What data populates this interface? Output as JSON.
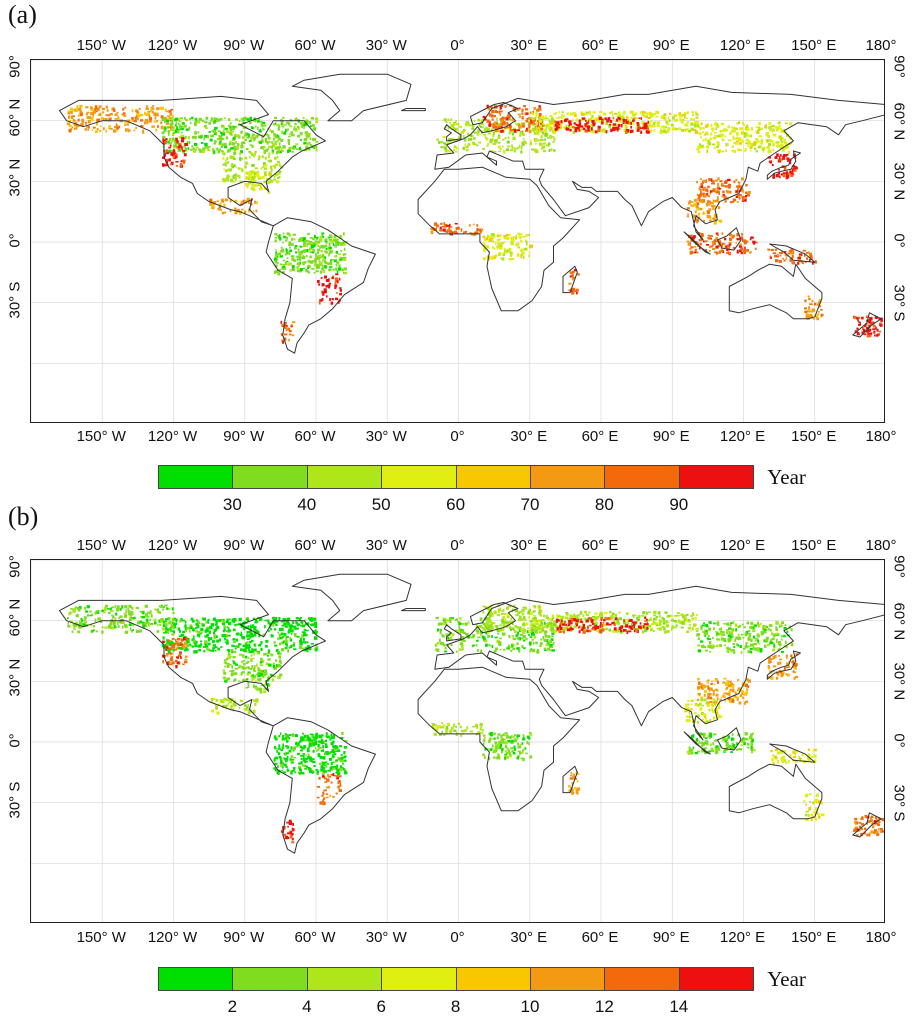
{
  "panels": [
    {
      "letter": "(a)",
      "legend_title": "Year",
      "legend_labels": [
        "30",
        "40",
        "50",
        "60",
        "70",
        "80",
        "90"
      ]
    },
    {
      "letter": "(b)",
      "legend_title": "Year",
      "legend_labels": [
        "2",
        "4",
        "6",
        "8",
        "10",
        "12",
        "14"
      ]
    }
  ],
  "lon_ticks": [
    "150° W",
    "120° W",
    "90° W",
    "60° W",
    "30° W",
    "0°",
    "30° E",
    "60° E",
    "90° E",
    "120° E",
    "150° E",
    "180°"
  ],
  "lat_ticks": [
    "90°",
    "60° N",
    "30° N",
    "0°",
    "30° S"
  ],
  "legend_colors": [
    "#00e000",
    "#7fdc1e",
    "#aee61a",
    "#e0ef12",
    "#f7c800",
    "#f39a12",
    "#f26a0c",
    "#ee1010"
  ],
  "land_outline_color": "#333333"
}
